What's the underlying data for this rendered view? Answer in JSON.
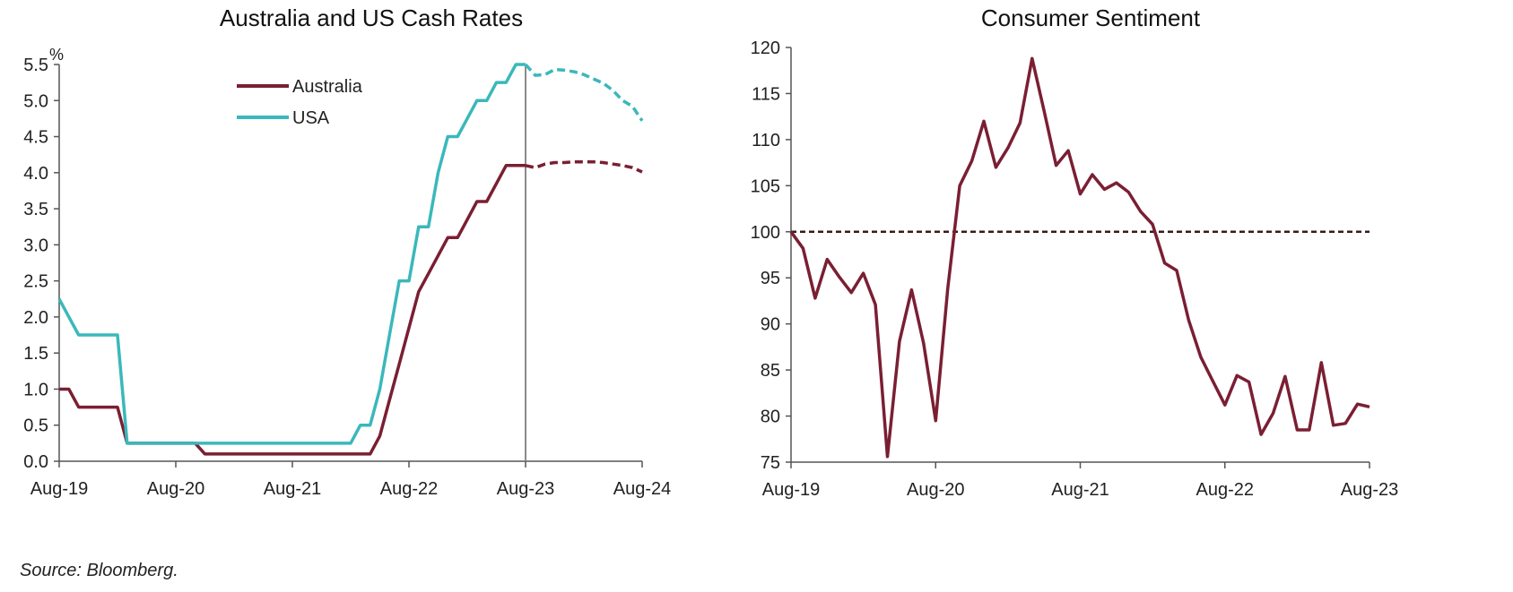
{
  "colors": {
    "australia": "#7a1f33",
    "usa": "#3ab8bb",
    "axis": "#555555",
    "divider": "#8a8a8a",
    "reference": "#3a1a1a"
  },
  "source": "Source: Bloomberg.",
  "chart_data": [
    {
      "type": "line",
      "title": "Australia and US Cash Rates",
      "ylabel": "%",
      "ylim": [
        0,
        5.5
      ],
      "yticks": [
        "0.0",
        "0.5",
        "1.0",
        "1.5",
        "2.0",
        "2.5",
        "3.0",
        "3.5",
        "4.0",
        "4.5",
        "5.0",
        "5.5"
      ],
      "xlim": [
        0,
        60
      ],
      "x_tick_labels": [
        {
          "x": 0,
          "label": "Aug-19"
        },
        {
          "x": 12,
          "label": "Aug-20"
        },
        {
          "x": 24,
          "label": "Aug-21"
        },
        {
          "x": 36,
          "label": "Aug-22"
        },
        {
          "x": 48,
          "label": "Aug-23"
        },
        {
          "x": 60,
          "label": "Aug-24"
        }
      ],
      "divider_x": 48,
      "legend": {
        "placement": "top-center"
      },
      "series": [
        {
          "name": "Australia",
          "color_key": "australia",
          "actual": [
            [
              0,
              1.0
            ],
            [
              1,
              1.0
            ],
            [
              2,
              0.75
            ],
            [
              3,
              0.75
            ],
            [
              4,
              0.75
            ],
            [
              5,
              0.75
            ],
            [
              6,
              0.75
            ],
            [
              7,
              0.25
            ],
            [
              8,
              0.25
            ],
            [
              9,
              0.25
            ],
            [
              10,
              0.25
            ],
            [
              11,
              0.25
            ],
            [
              12,
              0.25
            ],
            [
              13,
              0.25
            ],
            [
              14,
              0.25
            ],
            [
              15,
              0.1
            ],
            [
              16,
              0.1
            ],
            [
              17,
              0.1
            ],
            [
              18,
              0.1
            ],
            [
              19,
              0.1
            ],
            [
              20,
              0.1
            ],
            [
              21,
              0.1
            ],
            [
              22,
              0.1
            ],
            [
              23,
              0.1
            ],
            [
              24,
              0.1
            ],
            [
              25,
              0.1
            ],
            [
              26,
              0.1
            ],
            [
              27,
              0.1
            ],
            [
              28,
              0.1
            ],
            [
              29,
              0.1
            ],
            [
              30,
              0.1
            ],
            [
              31,
              0.1
            ],
            [
              32,
              0.1
            ],
            [
              33,
              0.35
            ],
            [
              34,
              0.85
            ],
            [
              35,
              1.35
            ],
            [
              36,
              1.85
            ],
            [
              37,
              2.35
            ],
            [
              38,
              2.6
            ],
            [
              39,
              2.85
            ],
            [
              40,
              3.1
            ],
            [
              41,
              3.1
            ],
            [
              42,
              3.35
            ],
            [
              43,
              3.6
            ],
            [
              44,
              3.6
            ],
            [
              45,
              3.85
            ],
            [
              46,
              4.1
            ],
            [
              47,
              4.1
            ],
            [
              48,
              4.1
            ]
          ],
          "forecast": [
            [
              48,
              4.1
            ],
            [
              49,
              4.07
            ],
            [
              50,
              4.12
            ],
            [
              51,
              4.14
            ],
            [
              52,
              4.14
            ],
            [
              53,
              4.15
            ],
            [
              54,
              4.15
            ],
            [
              55,
              4.15
            ],
            [
              56,
              4.14
            ],
            [
              57,
              4.12
            ],
            [
              58,
              4.1
            ],
            [
              59,
              4.07
            ],
            [
              60,
              4.01
            ]
          ]
        },
        {
          "name": "USA",
          "color_key": "usa",
          "actual": [
            [
              0,
              2.25
            ],
            [
              1,
              2.0
            ],
            [
              2,
              1.75
            ],
            [
              3,
              1.75
            ],
            [
              4,
              1.75
            ],
            [
              5,
              1.75
            ],
            [
              6,
              1.75
            ],
            [
              7,
              0.25
            ],
            [
              8,
              0.25
            ],
            [
              9,
              0.25
            ],
            [
              10,
              0.25
            ],
            [
              11,
              0.25
            ],
            [
              12,
              0.25
            ],
            [
              13,
              0.25
            ],
            [
              14,
              0.25
            ],
            [
              15,
              0.25
            ],
            [
              16,
              0.25
            ],
            [
              17,
              0.25
            ],
            [
              18,
              0.25
            ],
            [
              19,
              0.25
            ],
            [
              20,
              0.25
            ],
            [
              21,
              0.25
            ],
            [
              22,
              0.25
            ],
            [
              23,
              0.25
            ],
            [
              24,
              0.25
            ],
            [
              25,
              0.25
            ],
            [
              26,
              0.25
            ],
            [
              27,
              0.25
            ],
            [
              28,
              0.25
            ],
            [
              29,
              0.25
            ],
            [
              30,
              0.25
            ],
            [
              31,
              0.5
            ],
            [
              32,
              0.5
            ],
            [
              33,
              1.0
            ],
            [
              34,
              1.75
            ],
            [
              35,
              2.5
            ],
            [
              36,
              2.5
            ],
            [
              37,
              3.25
            ],
            [
              38,
              3.25
            ],
            [
              39,
              4.0
            ],
            [
              40,
              4.5
            ],
            [
              41,
              4.5
            ],
            [
              42,
              4.75
            ],
            [
              43,
              5.0
            ],
            [
              44,
              5.0
            ],
            [
              45,
              5.25
            ],
            [
              46,
              5.25
            ],
            [
              47,
              5.5
            ],
            [
              48,
              5.5
            ]
          ],
          "forecast": [
            [
              48,
              5.5
            ],
            [
              49,
              5.35
            ],
            [
              50,
              5.36
            ],
            [
              51,
              5.43
            ],
            [
              52,
              5.42
            ],
            [
              53,
              5.4
            ],
            [
              54,
              5.36
            ],
            [
              55,
              5.3
            ],
            [
              56,
              5.24
            ],
            [
              57,
              5.14
            ],
            [
              58,
              5.0
            ],
            [
              59,
              4.92
            ],
            [
              60,
              4.72
            ]
          ]
        }
      ]
    },
    {
      "type": "line",
      "title": "Consumer Sentiment",
      "ylim": [
        75,
        120
      ],
      "yticks": [
        "75",
        "80",
        "85",
        "90",
        "95",
        "100",
        "105",
        "110",
        "115",
        "120"
      ],
      "xlim": [
        0,
        48
      ],
      "x_tick_labels": [
        {
          "x": 0,
          "label": "Aug-19"
        },
        {
          "x": 12,
          "label": "Aug-20"
        },
        {
          "x": 24,
          "label": "Aug-21"
        },
        {
          "x": 36,
          "label": "Aug-22"
        },
        {
          "x": 48,
          "label": "Aug-23"
        }
      ],
      "reference_line": 100,
      "series": [
        {
          "color_key": "australia",
          "values": [
            [
              0,
              100.0
            ],
            [
              1,
              98.2
            ],
            [
              2,
              92.8
            ],
            [
              3,
              97.0
            ],
            [
              4,
              95.1
            ],
            [
              5,
              93.4
            ],
            [
              6,
              95.5
            ],
            [
              7,
              92.1
            ],
            [
              8,
              75.6
            ],
            [
              9,
              88.1
            ],
            [
              10,
              93.7
            ],
            [
              11,
              87.9
            ],
            [
              12,
              79.5
            ],
            [
              13,
              93.8
            ],
            [
              14,
              105.0
            ],
            [
              15,
              107.7
            ],
            [
              16,
              112.0
            ],
            [
              17,
              107.0
            ],
            [
              18,
              109.1
            ],
            [
              19,
              111.8
            ],
            [
              20,
              118.8
            ],
            [
              21,
              113.1
            ],
            [
              22,
              107.2
            ],
            [
              23,
              108.8
            ],
            [
              24,
              104.1
            ],
            [
              25,
              106.2
            ],
            [
              26,
              104.6
            ],
            [
              27,
              105.3
            ],
            [
              28,
              104.3
            ],
            [
              29,
              102.2
            ],
            [
              30,
              100.8
            ],
            [
              31,
              96.6
            ],
            [
              32,
              95.8
            ],
            [
              33,
              90.4
            ],
            [
              34,
              86.4
            ],
            [
              35,
              83.8
            ],
            [
              36,
              81.2
            ],
            [
              37,
              84.4
            ],
            [
              38,
              83.7
            ],
            [
              39,
              78.0
            ],
            [
              40,
              80.3
            ],
            [
              41,
              84.3
            ],
            [
              42,
              78.5
            ],
            [
              43,
              78.5
            ],
            [
              44,
              85.8
            ],
            [
              45,
              79.0
            ],
            [
              46,
              79.2
            ],
            [
              47,
              81.3
            ],
            [
              48,
              81.0
            ]
          ]
        }
      ]
    }
  ]
}
